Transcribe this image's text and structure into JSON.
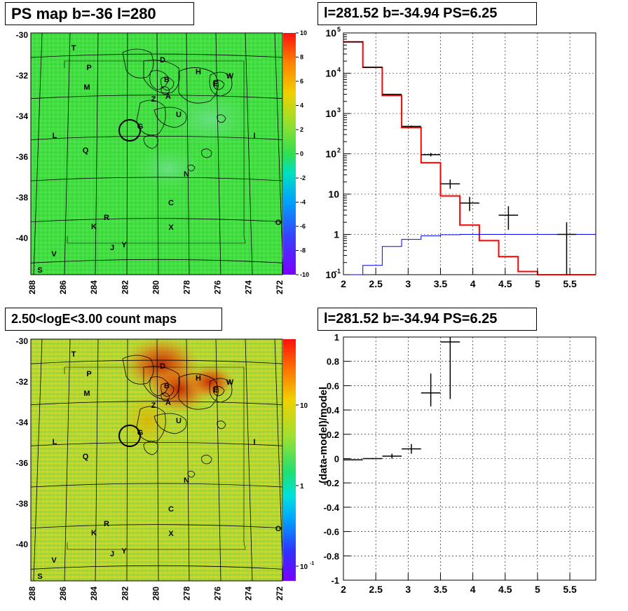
{
  "panels": {
    "ps_map": {
      "title": "PS map b=-36 l=280",
      "lat_ticks": [
        "-30",
        "-32",
        "-34",
        "-36",
        "-38",
        "-40"
      ],
      "lon_ticks": [
        "288",
        "286",
        "284",
        "282",
        "280",
        "278",
        "276",
        "274",
        "272"
      ],
      "colorbar_ticks": [
        "10",
        "8",
        "6",
        "4",
        "2",
        "0",
        "-2",
        "-4",
        "-6",
        "-8",
        "-10"
      ]
    },
    "count_map": {
      "title": "2.50<logE<3.00 count maps",
      "lat_ticks": [
        "-30",
        "-32",
        "-34",
        "-36",
        "-38",
        "-40"
      ],
      "lon_ticks": [
        "288",
        "286",
        "284",
        "282",
        "280",
        "278",
        "276",
        "274",
        "272"
      ],
      "colorbar_ticks": [
        "10",
        "1"
      ],
      "colorbar_small_tick": {
        "base": "10",
        "exp": "-1"
      }
    },
    "source_labels": [
      "T",
      "P",
      "M",
      "L",
      "Q",
      "R",
      "K",
      "J",
      "Y",
      "V",
      "S",
      "D",
      "B",
      "Z",
      "A",
      "G",
      "U",
      "H",
      "E",
      "W",
      "I",
      "N",
      "C",
      "X",
      "O"
    ]
  },
  "chart_data": [
    {
      "type": "line",
      "title": "l=281.52 b=-34.94 PS=6.25",
      "xlim": [
        2,
        5.9
      ],
      "ylim": [
        0.1,
        100000
      ],
      "yscale": "log",
      "grid": true,
      "x_ticks": [
        "2",
        "2.5",
        "3",
        "3.5",
        "4",
        "4.5",
        "5",
        "5.5"
      ],
      "y_ticks": [
        {
          "base": "10",
          "exp": "-1"
        },
        {
          "base": "1",
          "exp": ""
        },
        {
          "base": "10",
          "exp": ""
        },
        {
          "base": "10",
          "exp": "2"
        },
        {
          "base": "10",
          "exp": "3"
        },
        {
          "base": "10",
          "exp": "4"
        },
        {
          "base": "10",
          "exp": "5"
        }
      ],
      "series": [
        {
          "color": "#ff0000",
          "style": "step",
          "edges": [
            2.0,
            2.3,
            2.6,
            2.9,
            3.2,
            3.5,
            3.8,
            4.1,
            4.4,
            4.7,
            5.0,
            5.3,
            5.6,
            5.9
          ],
          "values": [
            60000,
            14000,
            2800,
            450,
            60,
            9,
            1.7,
            0.7,
            0.28,
            0.12,
            0.1,
            0.1,
            0.1
          ]
        },
        {
          "color": "#0000ff",
          "style": "step",
          "edges": [
            2.0,
            2.3,
            2.6,
            2.9,
            3.2,
            3.5,
            3.8,
            4.1,
            4.4,
            4.7,
            5.0,
            5.3,
            5.6,
            5.9
          ],
          "values": [
            0.08,
            0.17,
            0.5,
            0.75,
            0.92,
            0.98,
            1.0,
            1.0,
            1.0,
            1.0,
            1.0,
            1.0,
            1.0
          ]
        },
        {
          "color": "#000000",
          "style": "errorbar",
          "points": [
            {
              "x": 2.15,
              "xerr": 0.15,
              "y": 60000,
              "ylo": 59000,
              "yhi": 61000
            },
            {
              "x": 2.45,
              "xerr": 0.15,
              "y": 14000,
              "ylo": 13800,
              "yhi": 14200
            },
            {
              "x": 2.75,
              "xerr": 0.15,
              "y": 3000,
              "ylo": 2950,
              "yhi": 3050
            },
            {
              "x": 3.05,
              "xerr": 0.15,
              "y": 480,
              "ylo": 460,
              "yhi": 500
            },
            {
              "x": 3.35,
              "xerr": 0.15,
              "y": 95,
              "ylo": 86,
              "yhi": 105
            },
            {
              "x": 3.65,
              "xerr": 0.15,
              "y": 18,
              "ylo": 13.5,
              "yhi": 23
            },
            {
              "x": 3.95,
              "xerr": 0.15,
              "y": 6,
              "ylo": 3.8,
              "yhi": 8.5
            },
            {
              "x": 4.55,
              "xerr": 0.15,
              "y": 3,
              "ylo": 1.3,
              "yhi": 5
            },
            {
              "x": 5.45,
              "xerr": 0.15,
              "y": 1,
              "ylo": 0.1,
              "yhi": 2
            }
          ]
        }
      ]
    },
    {
      "type": "scatter",
      "title": "l=281.52 b=-34.94 PS=6.25",
      "ylabel": "(data-model)/model",
      "xlim": [
        2,
        5.9
      ],
      "ylim": [
        -1,
        1
      ],
      "grid": true,
      "x_ticks": [
        "2",
        "2.5",
        "3",
        "3.5",
        "4",
        "4.5",
        "5",
        "5.5"
      ],
      "y_ticks": [
        "-1",
        "-0.8",
        "-0.6",
        "-0.4",
        "-0.2",
        "0",
        "0.2",
        "0.4",
        "0.6",
        "0.8",
        "1"
      ],
      "points": [
        {
          "x": 2.15,
          "xerr": 0.15,
          "y": -0.01,
          "ylo": -0.015,
          "yhi": -0.005
        },
        {
          "x": 2.45,
          "xerr": 0.15,
          "y": 0.0,
          "ylo": -0.005,
          "yhi": 0.005
        },
        {
          "x": 2.75,
          "xerr": 0.15,
          "y": 0.02,
          "ylo": 0.0,
          "yhi": 0.04
        },
        {
          "x": 3.05,
          "xerr": 0.15,
          "y": 0.08,
          "ylo": 0.04,
          "yhi": 0.12
        },
        {
          "x": 3.35,
          "xerr": 0.15,
          "y": 0.54,
          "ylo": 0.43,
          "yhi": 0.7
        },
        {
          "x": 3.65,
          "xerr": 0.15,
          "y": 0.96,
          "ylo": 0.49,
          "yhi": 1.0
        }
      ]
    }
  ]
}
